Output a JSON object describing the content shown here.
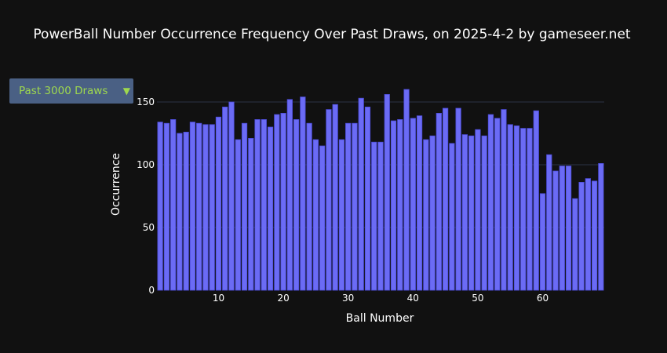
{
  "header": {
    "title": "PowerBall Number Occurrence Frequency Over Past Draws, on 2025-4-2 by gameseer.net"
  },
  "controls": {
    "range_selected": "Past 3000 Draws",
    "dropdown_arrow": "▼"
  },
  "colors": {
    "background": "#111111",
    "bar_fill": "#6b6bf5",
    "bar_stroke": "#4b4bd8",
    "grid": "#2b3245",
    "dropdown_bg": "#4a6084",
    "dropdown_text": "#9ed84e"
  },
  "chart_data": {
    "type": "bar",
    "xlabel": "Ball Number",
    "ylabel": "Occurrence",
    "xlim": [
      0.5,
      69.5
    ],
    "ylim": [
      0,
      170
    ],
    "xticks": [
      10,
      20,
      30,
      40,
      50,
      60
    ],
    "yticks": [
      0,
      50,
      100,
      150
    ],
    "grid": true,
    "x": [
      1,
      2,
      3,
      4,
      5,
      6,
      7,
      8,
      9,
      10,
      11,
      12,
      13,
      14,
      15,
      16,
      17,
      18,
      19,
      20,
      21,
      22,
      23,
      24,
      25,
      26,
      27,
      28,
      29,
      30,
      31,
      32,
      33,
      34,
      35,
      36,
      37,
      38,
      39,
      40,
      41,
      42,
      43,
      44,
      45,
      46,
      47,
      48,
      49,
      50,
      51,
      52,
      53,
      54,
      55,
      56,
      57,
      58,
      59,
      60,
      61,
      62,
      63,
      64,
      65,
      66,
      67,
      68,
      69
    ],
    "values": [
      134,
      133,
      136,
      125,
      126,
      134,
      133,
      132,
      132,
      138,
      146,
      150,
      120,
      133,
      121,
      136,
      136,
      130,
      140,
      141,
      152,
      136,
      154,
      133,
      120,
      115,
      144,
      148,
      120,
      133,
      133,
      153,
      146,
      118,
      118,
      156,
      135,
      136,
      160,
      137,
      139,
      120,
      123,
      141,
      145,
      117,
      145,
      124,
      123,
      128,
      123,
      140,
      137,
      144,
      132,
      131,
      129,
      129,
      143,
      77,
      108,
      95,
      99,
      99,
      73,
      86,
      89,
      87,
      101
    ]
  }
}
